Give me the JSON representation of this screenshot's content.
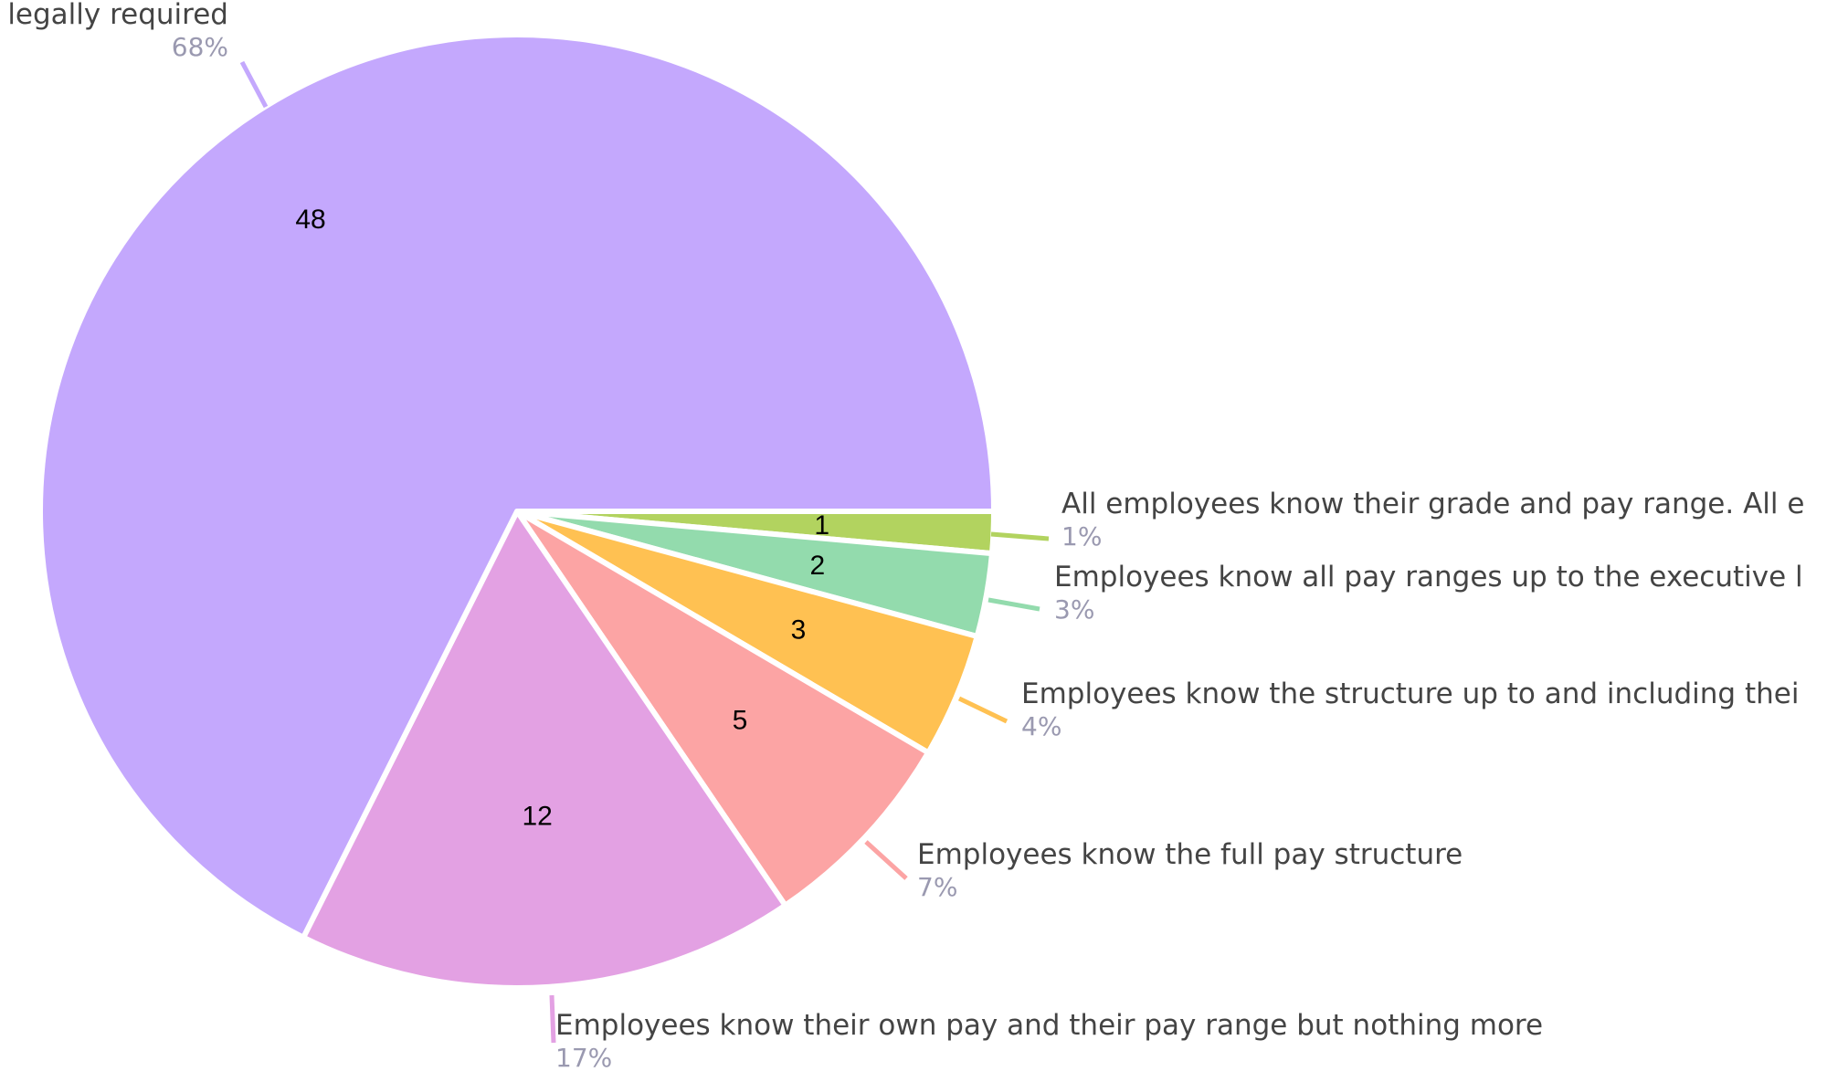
{
  "chart_data": {
    "type": "pie",
    "start": "3-o'clock",
    "direction": "counterclockwise",
    "slices": [
      {
        "label": "All employees know their grade and pay range. All e",
        "value": 1,
        "percent": "1%",
        "color": "#b2d35f"
      },
      {
        "label": "Employees know all pay ranges up to the executive l",
        "value": 2,
        "percent": "3%",
        "color": "#93dbad"
      },
      {
        "label": "Employees know the structure up to and including thei",
        "value": 3,
        "percent": "4%",
        "color": "#ffc152"
      },
      {
        "label": "Employees know the full pay structure",
        "value": 5,
        "percent": "7%",
        "color": "#fca4a4"
      },
      {
        "label": "Employees know their own pay and their pay range but nothing more",
        "value": 12,
        "percent": "17%",
        "color": "#e3a1e3"
      },
      {
        "label": "legally required",
        "value": 48,
        "percent": "68%",
        "color": "#c4a8fd"
      }
    ]
  }
}
